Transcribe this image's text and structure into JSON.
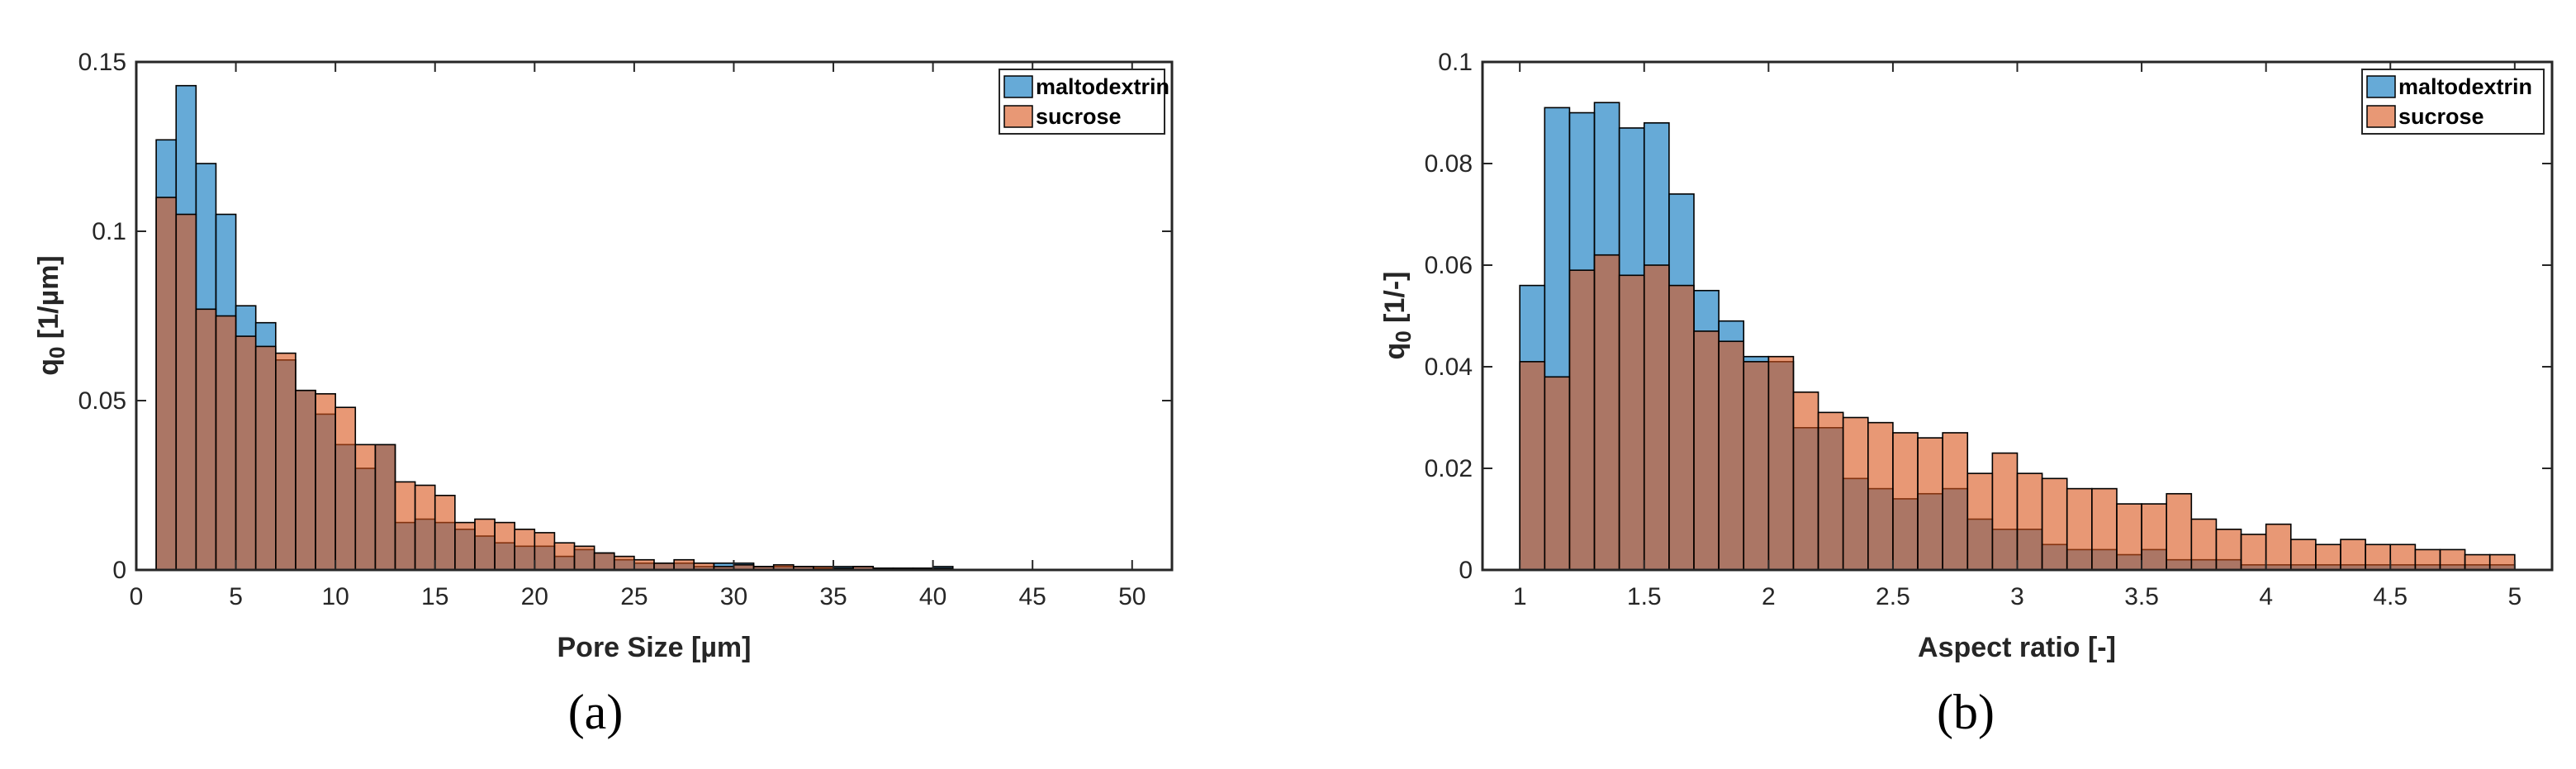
{
  "colors": {
    "maltodextrin": "#0072BD",
    "sucrose": "#D95319",
    "overlap": "#7a5a4a"
  },
  "chart_data": [
    {
      "type": "bar",
      "panel": "(a)",
      "xlabel": "Pore Size [µm]",
      "ylabel_main": "q",
      "ylabel_sub": "0",
      "ylabel_unit": " [1/µm]",
      "xlim": [
        0,
        52
      ],
      "ylim": [
        0,
        0.15
      ],
      "xticks": [
        0,
        5,
        10,
        15,
        20,
        25,
        30,
        35,
        40,
        45,
        50
      ],
      "yticks": [
        0,
        0.05,
        0.1,
        0.15
      ],
      "ytick_labels": [
        "0",
        "0.05",
        "0.1",
        "0.15"
      ],
      "bin_start": 1,
      "bin_width": 1,
      "legend_location": "top-right",
      "series": [
        {
          "name": "maltodextrin",
          "values": [
            0.127,
            0.143,
            0.12,
            0.105,
            0.078,
            0.073,
            0.062,
            0.053,
            0.046,
            0.037,
            0.03,
            0.037,
            0.014,
            0.015,
            0.014,
            0.012,
            0.01,
            0.008,
            0.007,
            0.007,
            0.004,
            0.006,
            0.005,
            0.003,
            0.002,
            0.002,
            0.002,
            0.001,
            0.002,
            0.002,
            0.001,
            0.001,
            0.001,
            0.0005,
            0.001,
            0.001,
            0.0005,
            0.0005,
            0.0005,
            0.001,
            0,
            0,
            0,
            0,
            0,
            0,
            0,
            0,
            0,
            0
          ]
        },
        {
          "name": "sucrose",
          "values": [
            0.11,
            0.105,
            0.077,
            0.075,
            0.069,
            0.066,
            0.064,
            0.053,
            0.052,
            0.048,
            0.037,
            0.037,
            0.026,
            0.025,
            0.022,
            0.014,
            0.015,
            0.014,
            0.012,
            0.011,
            0.008,
            0.007,
            0.005,
            0.004,
            0.003,
            0.002,
            0.003,
            0.002,
            0.001,
            0.0015,
            0.001,
            0.0015,
            0.001,
            0.001,
            0.0005,
            0.001,
            0.0005,
            0.0005,
            0.0005,
            0.0005,
            0,
            0,
            0,
            0,
            0,
            0,
            0,
            0,
            0,
            0
          ]
        }
      ]
    },
    {
      "type": "bar",
      "panel": "(b)",
      "xlabel": "Aspect ratio [-]",
      "ylabel_main": "q",
      "ylabel_sub": "0",
      "ylabel_unit": " [1/-]",
      "xlim": [
        0.85,
        5.15
      ],
      "ylim": [
        0,
        0.1
      ],
      "xticks": [
        1,
        1.5,
        2,
        2.5,
        3,
        3.5,
        4,
        4.5,
        5
      ],
      "yticks": [
        0,
        0.02,
        0.04,
        0.06,
        0.08,
        0.1
      ],
      "ytick_labels": [
        "0",
        "0.02",
        "0.04",
        "0.06",
        "0.08",
        "0.1"
      ],
      "bin_start": 1,
      "bin_width": 0.1,
      "legend_location": "top-right",
      "series": [
        {
          "name": "maltodextrin",
          "values": [
            0.056,
            0.091,
            0.09,
            0.092,
            0.087,
            0.088,
            0.074,
            0.055,
            0.049,
            0.042,
            0.041,
            0.028,
            0.028,
            0.018,
            0.016,
            0.014,
            0.015,
            0.016,
            0.01,
            0.008,
            0.008,
            0.005,
            0.004,
            0.004,
            0.003,
            0.004,
            0.002,
            0.002,
            0.002,
            0.001,
            0.001,
            0.001,
            0.001,
            0.001,
            0.001,
            0.001,
            0.001,
            0.001,
            0.001,
            0.001
          ]
        },
        {
          "name": "sucrose",
          "values": [
            0.041,
            0.038,
            0.059,
            0.062,
            0.058,
            0.06,
            0.056,
            0.047,
            0.045,
            0.041,
            0.042,
            0.035,
            0.031,
            0.03,
            0.029,
            0.027,
            0.026,
            0.027,
            0.019,
            0.023,
            0.019,
            0.018,
            0.016,
            0.016,
            0.013,
            0.013,
            0.015,
            0.01,
            0.008,
            0.007,
            0.009,
            0.006,
            0.005,
            0.006,
            0.005,
            0.005,
            0.004,
            0.004,
            0.003,
            0.003
          ]
        }
      ]
    }
  ]
}
